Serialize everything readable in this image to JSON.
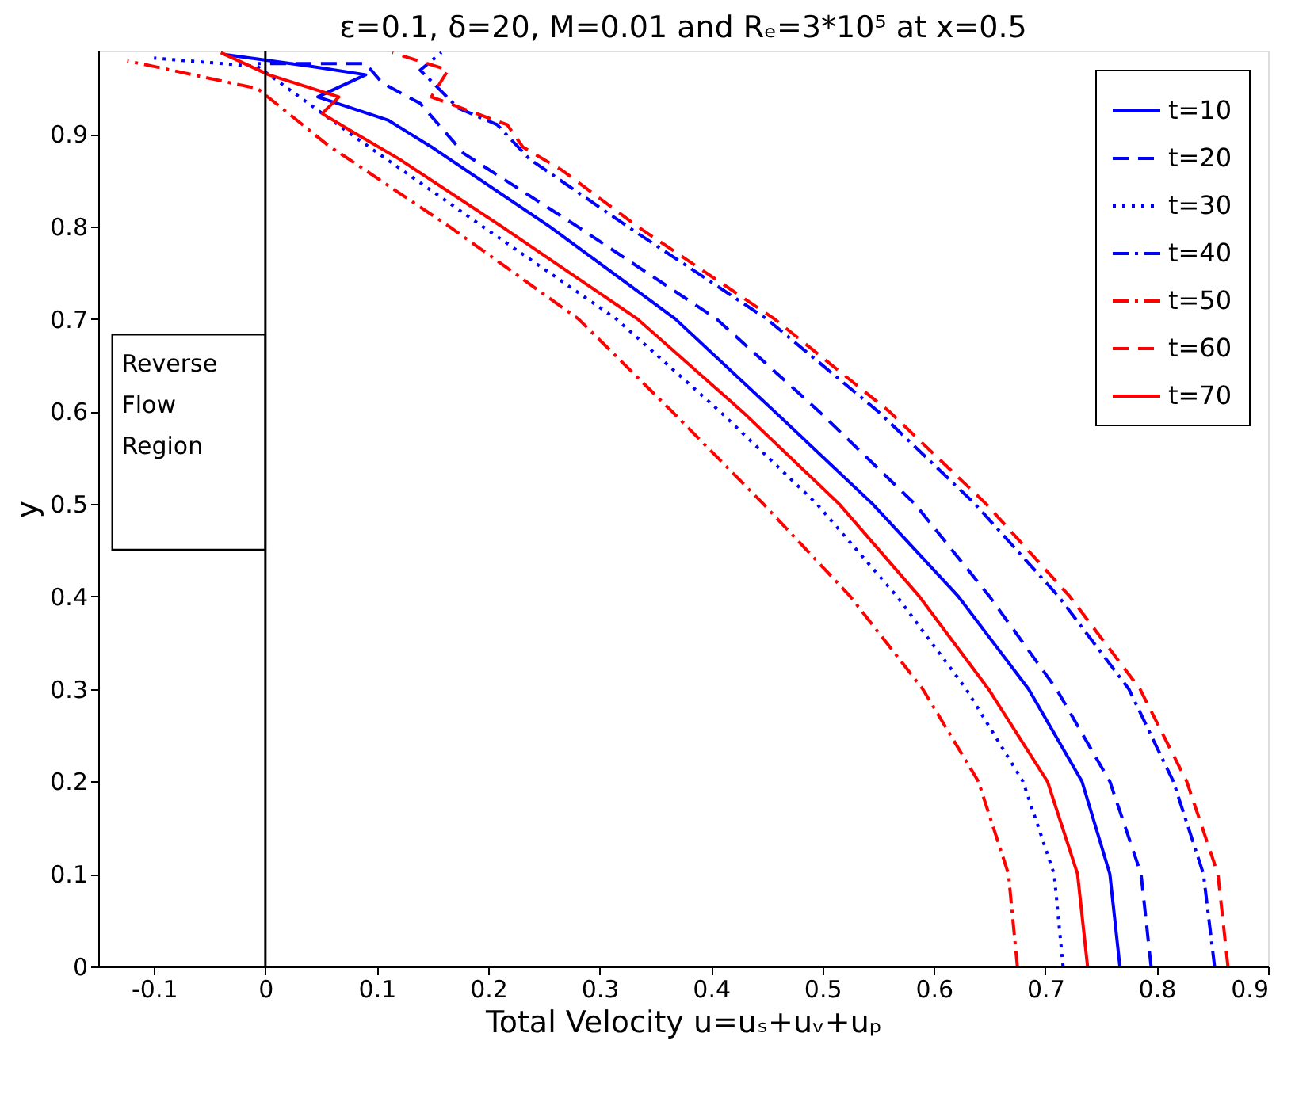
{
  "chart_data": {
    "type": "line",
    "title": "ε=0.1, δ=20, M=0.01 and Rₑ=3*10⁵ at x=0.5",
    "xlabel": "Total Velocity u=uₛ+uᵥ+uₚ",
    "ylabel": "y",
    "xlim": [
      -0.15,
      0.9
    ],
    "ylim": [
      0,
      0.99
    ],
    "xticks": [
      -0.1,
      0,
      0.1,
      0.2,
      0.3,
      0.4,
      0.5,
      0.6,
      0.7,
      0.8,
      0.9
    ],
    "yticks": [
      0,
      0.1,
      0.2,
      0.3,
      0.4,
      0.5,
      0.6,
      0.7,
      0.8,
      0.9
    ],
    "grid": false,
    "legend": "top right",
    "marker": "none",
    "ref_lines": [
      {
        "axis": "x",
        "value": 0,
        "color": "#000000",
        "line_style": "solid"
      }
    ],
    "annotations": [
      "Reverse Flow Region"
    ],
    "series": [
      {
        "name": "t=10",
        "color": "#0000ff",
        "line_style": "solid",
        "x": [
          0.767,
          0.758,
          0.733,
          0.685,
          0.622,
          0.545,
          0.457,
          0.368,
          0.255,
          0.149,
          0.11,
          0.047,
          0.09,
          0.041,
          -0.037
        ],
        "values": [
          0,
          0.1,
          0.2,
          0.3,
          0.4,
          0.5,
          0.6,
          0.7,
          0.8,
          0.886,
          0.915,
          0.94,
          0.964,
          0.973,
          0.986
        ]
      },
      {
        "name": "t=20",
        "color": "#0000ff",
        "line_style": "dashed",
        "x": [
          0.795,
          0.786,
          0.758,
          0.71,
          0.65,
          0.583,
          0.497,
          0.405,
          0.28,
          0.178,
          0.139,
          0.105,
          0.09,
          -0.007
        ],
        "values": [
          0,
          0.1,
          0.2,
          0.3,
          0.4,
          0.5,
          0.6,
          0.7,
          0.8,
          0.879,
          0.933,
          0.955,
          0.976,
          0.976
        ]
      },
      {
        "name": "t=30",
        "color": "#0000ff",
        "line_style": "dotted",
        "x": [
          0.716,
          0.708,
          0.68,
          0.629,
          0.567,
          0.495,
          0.408,
          0.315,
          0.195,
          0.08,
          0.041,
          -0.007,
          -0.1
        ],
        "values": [
          0,
          0.1,
          0.2,
          0.3,
          0.4,
          0.5,
          0.6,
          0.7,
          0.8,
          0.897,
          0.931,
          0.973,
          0.982
        ]
      },
      {
        "name": "t=40",
        "color": "#0000ff",
        "line_style": "dashdot",
        "x": [
          0.852,
          0.842,
          0.815,
          0.775,
          0.712,
          0.637,
          0.55,
          0.45,
          0.325,
          0.237,
          0.208,
          0.173,
          0.139,
          0.158
        ],
        "values": [
          0,
          0.1,
          0.2,
          0.3,
          0.4,
          0.5,
          0.6,
          0.7,
          0.8,
          0.873,
          0.91,
          0.928,
          0.969,
          0.988
        ]
      },
      {
        "name": "t=50",
        "color": "#ff0000",
        "line_style": "dashdot",
        "x": [
          0.675,
          0.667,
          0.64,
          0.59,
          0.525,
          0.447,
          0.365,
          0.281,
          0.165,
          0.056,
          -0.007,
          -0.1,
          -0.124
        ],
        "values": [
          0,
          0.1,
          0.2,
          0.3,
          0.4,
          0.5,
          0.6,
          0.7,
          0.8,
          0.888,
          0.949,
          0.973,
          0.979
        ]
      },
      {
        "name": "t=60",
        "color": "#ff0000",
        "line_style": "dashed",
        "x": [
          0.864,
          0.855,
          0.827,
          0.785,
          0.722,
          0.647,
          0.56,
          0.457,
          0.334,
          0.266,
          0.231,
          0.217,
          0.149,
          0.164,
          0.114
        ],
        "values": [
          0,
          0.1,
          0.2,
          0.3,
          0.4,
          0.5,
          0.6,
          0.7,
          0.8,
          0.861,
          0.886,
          0.91,
          0.94,
          0.969,
          0.988
        ]
      },
      {
        "name": "t=70",
        "color": "#ff0000",
        "line_style": "solid",
        "x": [
          0.738,
          0.729,
          0.702,
          0.649,
          0.587,
          0.515,
          0.428,
          0.334,
          0.212,
          0.12,
          0.076,
          0.051,
          0.066,
          0.003,
          -0.04
        ],
        "values": [
          0,
          0.1,
          0.2,
          0.3,
          0.4,
          0.5,
          0.6,
          0.7,
          0.8,
          0.873,
          0.904,
          0.922,
          0.94,
          0.964,
          0.988
        ]
      }
    ]
  }
}
